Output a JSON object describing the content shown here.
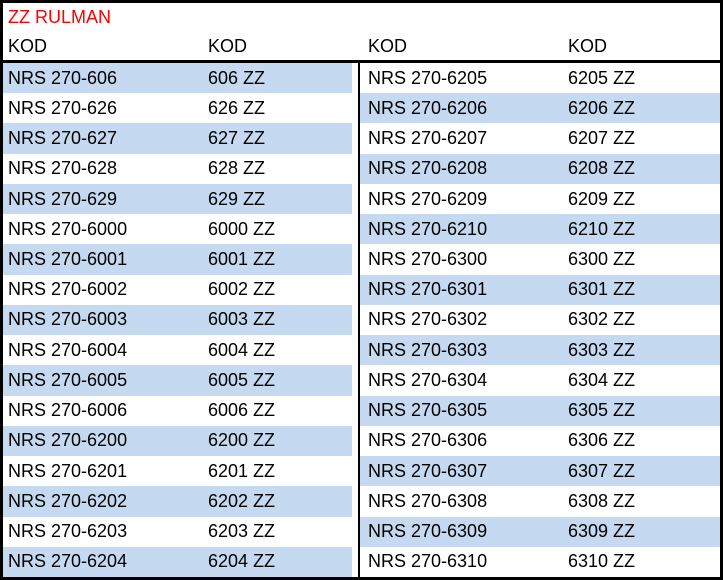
{
  "title": "ZZ RULMAN",
  "headers": {
    "col1": "KOD",
    "col2": "KOD",
    "col3": "KOD",
    "col4": "KOD"
  },
  "colors": {
    "stripe": "#c5d9f1",
    "title": "#ff0000",
    "border": "#000000",
    "text": "#000000"
  },
  "left_rows": [
    {
      "code": "NRS 270-606",
      "zz": "606 ZZ"
    },
    {
      "code": "NRS 270-626",
      "zz": "626 ZZ"
    },
    {
      "code": "NRS 270-627",
      "zz": "627 ZZ"
    },
    {
      "code": "NRS 270-628",
      "zz": "628 ZZ"
    },
    {
      "code": "NRS 270-629",
      "zz": "629 ZZ"
    },
    {
      "code": "NRS 270-6000",
      "zz": "6000 ZZ"
    },
    {
      "code": "NRS 270-6001",
      "zz": "6001 ZZ"
    },
    {
      "code": "NRS 270-6002",
      "zz": "6002 ZZ"
    },
    {
      "code": "NRS 270-6003",
      "zz": "6003 ZZ"
    },
    {
      "code": "NRS 270-6004",
      "zz": "6004 ZZ"
    },
    {
      "code": "NRS 270-6005",
      "zz": "6005 ZZ"
    },
    {
      "code": "NRS 270-6006",
      "zz": "6006 ZZ"
    },
    {
      "code": "NRS 270-6200",
      "zz": "6200 ZZ"
    },
    {
      "code": "NRS 270-6201",
      "zz": "6201 ZZ"
    },
    {
      "code": "NRS 270-6202",
      "zz": "6202 ZZ"
    },
    {
      "code": "NRS 270-6203",
      "zz": "6203 ZZ"
    },
    {
      "code": "NRS 270-6204",
      "zz": "6204 ZZ"
    }
  ],
  "right_rows": [
    {
      "code": "NRS 270-6205",
      "zz": "6205 ZZ"
    },
    {
      "code": "NRS 270-6206",
      "zz": "6206 ZZ"
    },
    {
      "code": "NRS 270-6207",
      "zz": "6207 ZZ"
    },
    {
      "code": "NRS 270-6208",
      "zz": "6208 ZZ"
    },
    {
      "code": "NRS 270-6209",
      "zz": "6209 ZZ"
    },
    {
      "code": "NRS 270-6210",
      "zz": "6210 ZZ"
    },
    {
      "code": "NRS 270-6300",
      "zz": "6300 ZZ"
    },
    {
      "code": "NRS 270-6301",
      "zz": "6301 ZZ"
    },
    {
      "code": "NRS 270-6302",
      "zz": "6302 ZZ"
    },
    {
      "code": "NRS 270-6303",
      "zz": "6303 ZZ"
    },
    {
      "code": "NRS 270-6304",
      "zz": "6304 ZZ"
    },
    {
      "code": "NRS 270-6305",
      "zz": "6305 ZZ"
    },
    {
      "code": "NRS 270-6306",
      "zz": "6306 ZZ"
    },
    {
      "code": "NRS 270-6307",
      "zz": "6307 ZZ"
    },
    {
      "code": "NRS 270-6308",
      "zz": "6308 ZZ"
    },
    {
      "code": "NRS 270-6309",
      "zz": "6309 ZZ"
    },
    {
      "code": "NRS 270-6310",
      "zz": "6310 ZZ"
    }
  ]
}
